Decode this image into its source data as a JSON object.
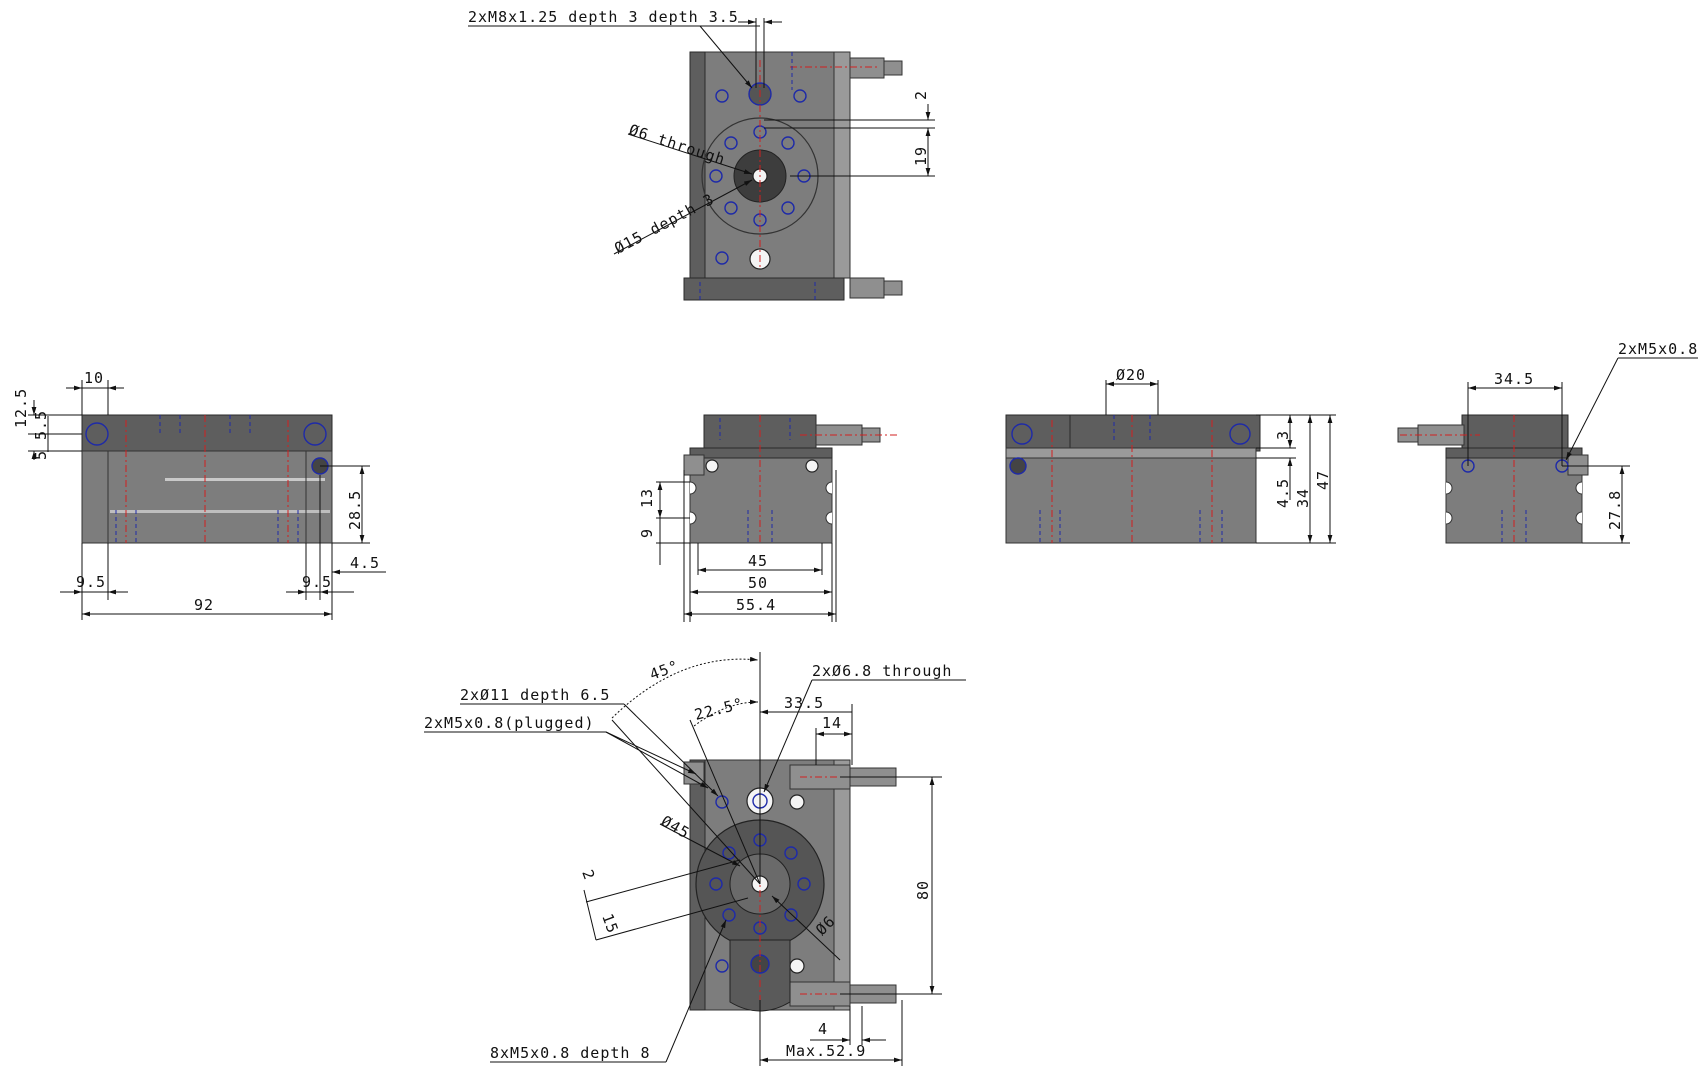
{
  "top_view": {
    "callout_thread": "2xM8x1.25 depth 3 depth 3.5",
    "callout_through": "Ø6 through",
    "callout_counterbore": "Ø15 depth 3",
    "dim_2": "2",
    "dim_19": "19"
  },
  "left_view": {
    "dim_10": "10",
    "dim_12_5": "12.5",
    "dim_5_5": "5.5",
    "dim_5": "5",
    "dim_28_5": "28.5",
    "dim_4_5": "4.5",
    "dim_9_5_left": "9.5",
    "dim_9_5_right": "9.5",
    "dim_92": "92"
  },
  "center_view": {
    "dim_13": "13",
    "dim_9": "9",
    "dim_45": "45",
    "dim_50": "50",
    "dim_55_4": "55.4"
  },
  "right_view": {
    "dim_dia20": "Ø20",
    "dim_3": "3",
    "dim_4_5": "4.5",
    "dim_34": "34",
    "dim_47": "47"
  },
  "far_right_view": {
    "callout_thread": "2xM5x0.8",
    "dim_34_5": "34.5",
    "dim_27_8": "27.8"
  },
  "bottom_view": {
    "angle_45": "45°",
    "angle_22_5": "22.5°",
    "callout_through": "2xØ6.8 through",
    "callout_cbore": "2xØ11 depth 6.5",
    "callout_plugged": "2xM5x0.8(plugged)",
    "dim_33_5": "33.5",
    "dim_14": "14",
    "dim_dia45": "Ø45",
    "dim_dia6": "Ø6",
    "dim_2": "2",
    "dim_15": "15",
    "dim_80": "80",
    "dim_4": "4",
    "dim_max": "Max.52.9",
    "callout_thread8": "8xM5x0.8 depth 8"
  }
}
